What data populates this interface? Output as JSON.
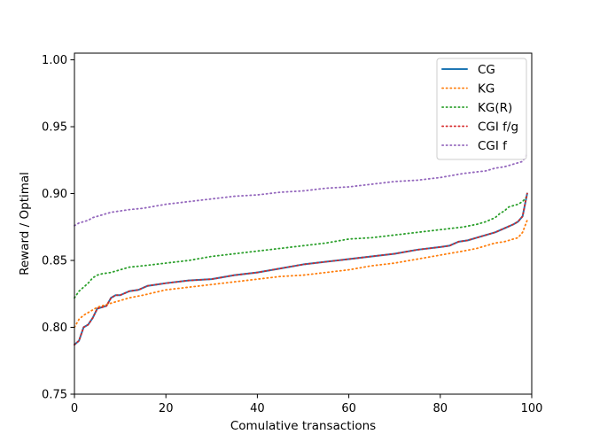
{
  "chart_data": {
    "type": "line",
    "title": "",
    "xlabel": "Comulative transactions",
    "ylabel": "Reward / Optimal",
    "xlim": [
      0,
      100
    ],
    "ylim": [
      0.75,
      1.005
    ],
    "xticks": [
      0,
      20,
      40,
      60,
      80,
      100
    ],
    "xtick_labels": [
      "0",
      "20",
      "40",
      "60",
      "80",
      "100"
    ],
    "yticks": [
      0.75,
      0.8,
      0.85,
      0.9,
      0.95,
      1.0
    ],
    "ytick_labels": [
      "0.75",
      "0.80",
      "0.85",
      "0.90",
      "0.95",
      "1.00"
    ],
    "grid": false,
    "legend_position": "top-right",
    "series": [
      {
        "name": "CG",
        "style": "solid",
        "color": "#1f77b4",
        "x": [
          0,
          1,
          2,
          3,
          4,
          5,
          6,
          7,
          8,
          9,
          10,
          12,
          14,
          16,
          18,
          20,
          25,
          30,
          35,
          40,
          45,
          50,
          55,
          60,
          65,
          70,
          75,
          80,
          82,
          84,
          86,
          88,
          90,
          92,
          94,
          96,
          97,
          98,
          99
        ],
        "y": [
          0.787,
          0.79,
          0.8,
          0.802,
          0.807,
          0.814,
          0.815,
          0.816,
          0.822,
          0.824,
          0.824,
          0.827,
          0.828,
          0.831,
          0.832,
          0.833,
          0.835,
          0.836,
          0.839,
          0.841,
          0.844,
          0.847,
          0.849,
          0.851,
          0.853,
          0.855,
          0.858,
          0.86,
          0.861,
          0.864,
          0.865,
          0.867,
          0.869,
          0.871,
          0.874,
          0.877,
          0.879,
          0.883,
          0.9
        ]
      },
      {
        "name": "KG",
        "style": "dotted",
        "color": "#ff7f0e",
        "x": [
          0,
          1,
          2,
          3,
          4,
          5,
          6,
          7,
          8,
          10,
          12,
          15,
          20,
          25,
          30,
          35,
          40,
          45,
          50,
          55,
          60,
          65,
          70,
          75,
          80,
          85,
          88,
          90,
          92,
          94,
          96,
          97,
          98,
          99
        ],
        "y": [
          0.8,
          0.806,
          0.809,
          0.811,
          0.813,
          0.815,
          0.816,
          0.817,
          0.818,
          0.82,
          0.822,
          0.824,
          0.828,
          0.83,
          0.832,
          0.834,
          0.836,
          0.838,
          0.839,
          0.841,
          0.843,
          0.846,
          0.848,
          0.851,
          0.854,
          0.857,
          0.859,
          0.861,
          0.863,
          0.864,
          0.866,
          0.867,
          0.871,
          0.88
        ]
      },
      {
        "name": "KG(R)",
        "style": "dotted",
        "color": "#2ca02c",
        "x": [
          0,
          1,
          2,
          3,
          4,
          5,
          6,
          8,
          10,
          12,
          15,
          20,
          25,
          30,
          35,
          40,
          45,
          50,
          55,
          60,
          65,
          70,
          75,
          80,
          85,
          88,
          90,
          92,
          93,
          94,
          95,
          96,
          97,
          98,
          99
        ],
        "y": [
          0.822,
          0.827,
          0.83,
          0.833,
          0.837,
          0.839,
          0.84,
          0.841,
          0.843,
          0.845,
          0.846,
          0.848,
          0.85,
          0.853,
          0.855,
          0.857,
          0.859,
          0.861,
          0.863,
          0.866,
          0.867,
          0.869,
          0.871,
          0.873,
          0.875,
          0.877,
          0.879,
          0.882,
          0.885,
          0.887,
          0.89,
          0.891,
          0.892,
          0.894,
          0.898
        ]
      },
      {
        "name": "CGI f/g",
        "style": "dotted",
        "color": "#d62728",
        "x": [
          0,
          1,
          2,
          3,
          4,
          5,
          6,
          7,
          8,
          9,
          10,
          12,
          14,
          16,
          18,
          20,
          25,
          30,
          35,
          40,
          45,
          50,
          55,
          60,
          65,
          70,
          75,
          80,
          82,
          84,
          86,
          88,
          90,
          92,
          94,
          96,
          97,
          98,
          99
        ],
        "y": [
          0.787,
          0.79,
          0.8,
          0.802,
          0.807,
          0.814,
          0.815,
          0.816,
          0.822,
          0.824,
          0.824,
          0.827,
          0.828,
          0.831,
          0.832,
          0.833,
          0.835,
          0.836,
          0.839,
          0.841,
          0.844,
          0.847,
          0.849,
          0.851,
          0.853,
          0.855,
          0.858,
          0.86,
          0.861,
          0.864,
          0.865,
          0.867,
          0.869,
          0.871,
          0.874,
          0.877,
          0.879,
          0.883,
          0.9
        ]
      },
      {
        "name": "CGI f",
        "style": "dotted",
        "color": "#9467bd",
        "x": [
          0,
          1,
          2,
          3,
          4,
          5,
          6,
          8,
          10,
          12,
          15,
          20,
          25,
          30,
          35,
          40,
          45,
          50,
          55,
          60,
          65,
          70,
          75,
          80,
          85,
          90,
          92,
          94,
          96,
          97,
          98,
          99
        ],
        "y": [
          0.876,
          0.878,
          0.879,
          0.88,
          0.882,
          0.883,
          0.884,
          0.886,
          0.887,
          0.888,
          0.889,
          0.892,
          0.894,
          0.896,
          0.898,
          0.899,
          0.901,
          0.902,
          0.904,
          0.905,
          0.907,
          0.909,
          0.91,
          0.912,
          0.915,
          0.917,
          0.919,
          0.92,
          0.922,
          0.923,
          0.924,
          0.93
        ]
      }
    ]
  }
}
